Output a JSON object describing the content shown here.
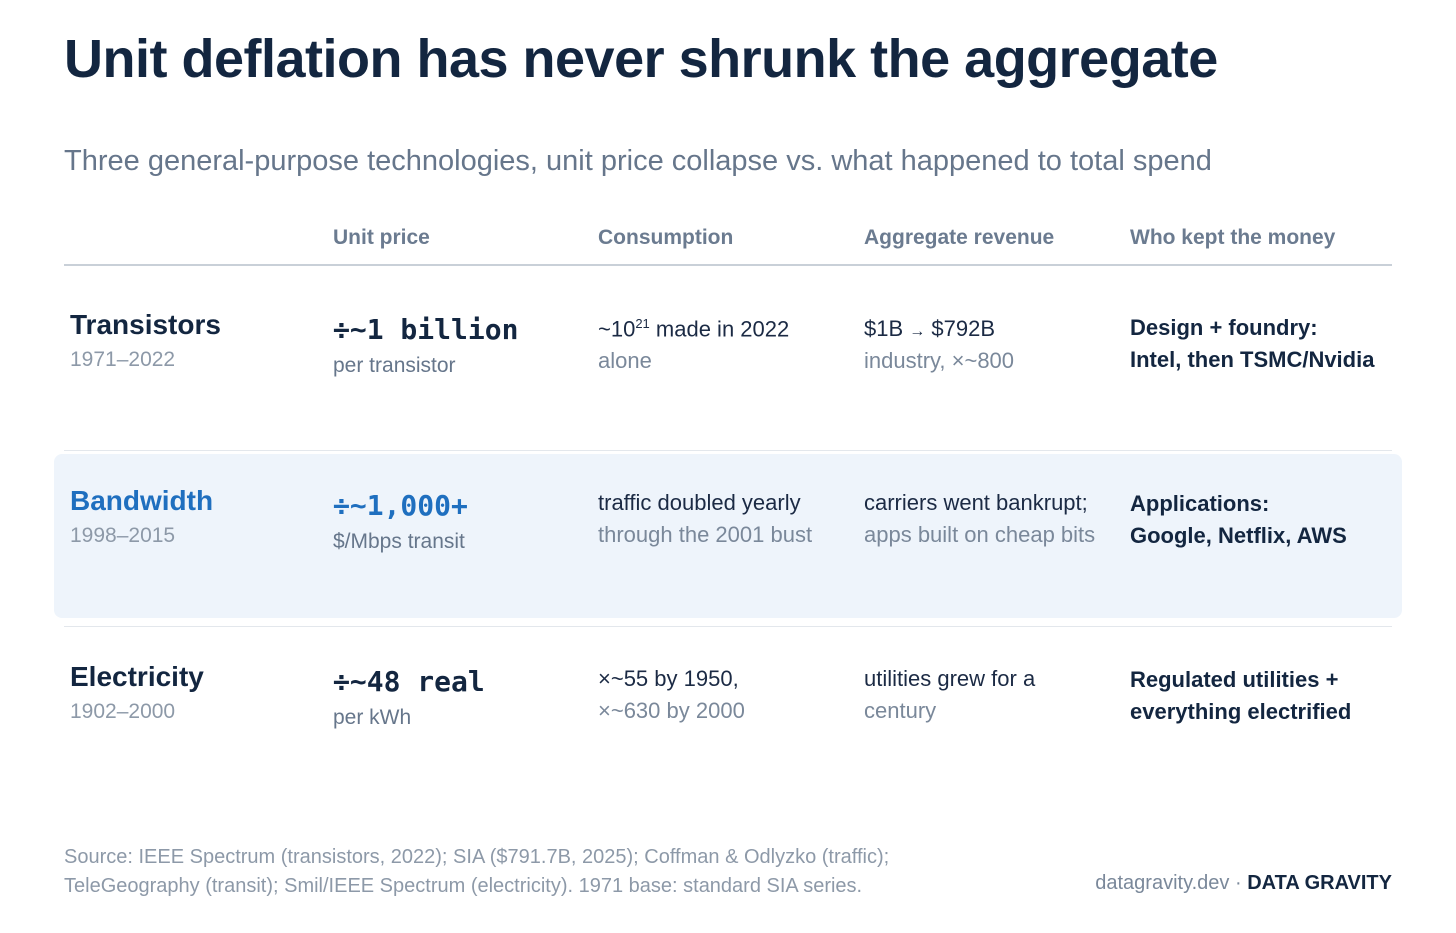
{
  "title": "Unit deflation has never shrunk the aggregate",
  "subtitle": "Three general-purpose technologies, unit price collapse vs. what happened to total spend",
  "columns": [
    "Unit price",
    "Consumption",
    "Aggregate revenue",
    "Who kept the money"
  ],
  "rows": [
    {
      "name": "Transistors",
      "years": "1971–2022",
      "price": "÷~1 billion",
      "price_sub": "per transistor",
      "consumption_pre": "~10",
      "consumption_sup": "21",
      "consumption_post": " made in 2022",
      "consumption_l2": "alone",
      "revenue_from": "$1B",
      "revenue_arrow": "→",
      "revenue_to": "$792B",
      "revenue_l2": "industry, ×~800",
      "keep_l1": "Design + foundry:",
      "keep_l2": "Intel, then TSMC/Nvidia"
    },
    {
      "name": "Bandwidth",
      "years": "1998–2015",
      "price": "÷~1,000+",
      "price_sub": "$/Mbps transit",
      "consumption_l1": "traffic doubled yearly",
      "consumption_l2": "through the 2001 bust",
      "revenue_l1": "carriers went bankrupt;",
      "revenue_l2": "apps built on cheap bits",
      "keep_l1": "Applications:",
      "keep_l2": "Google, Netflix, AWS"
    },
    {
      "name": "Electricity",
      "years": "1902–2000",
      "price": "÷~48 real",
      "price_sub": "per kWh",
      "consumption_l1": "×~55 by 1950,",
      "consumption_l2": "×~630 by 2000",
      "revenue_l1": "utilities grew for a",
      "revenue_l2": "century",
      "keep_l1": "Regulated utilities +",
      "keep_l2": "everything electrified"
    }
  ],
  "footer": {
    "source_l1": "Source: IEEE Spectrum (transistors, 2022); SIA ($791.7B, 2025); Coffman & Odlyzko (traffic);",
    "source_l2": "TeleGeography (transit); Smil/IEEE Spectrum (electricity). 1971 base: standard SIA series.",
    "site": "datagravity.dev",
    "separator": "·",
    "brand": "DATA GRAVITY"
  },
  "colors": {
    "title": "#132640",
    "accent_blue": "#1f6fbf",
    "highlight_bg": "#eef4fb",
    "muted": "#7a889a"
  }
}
